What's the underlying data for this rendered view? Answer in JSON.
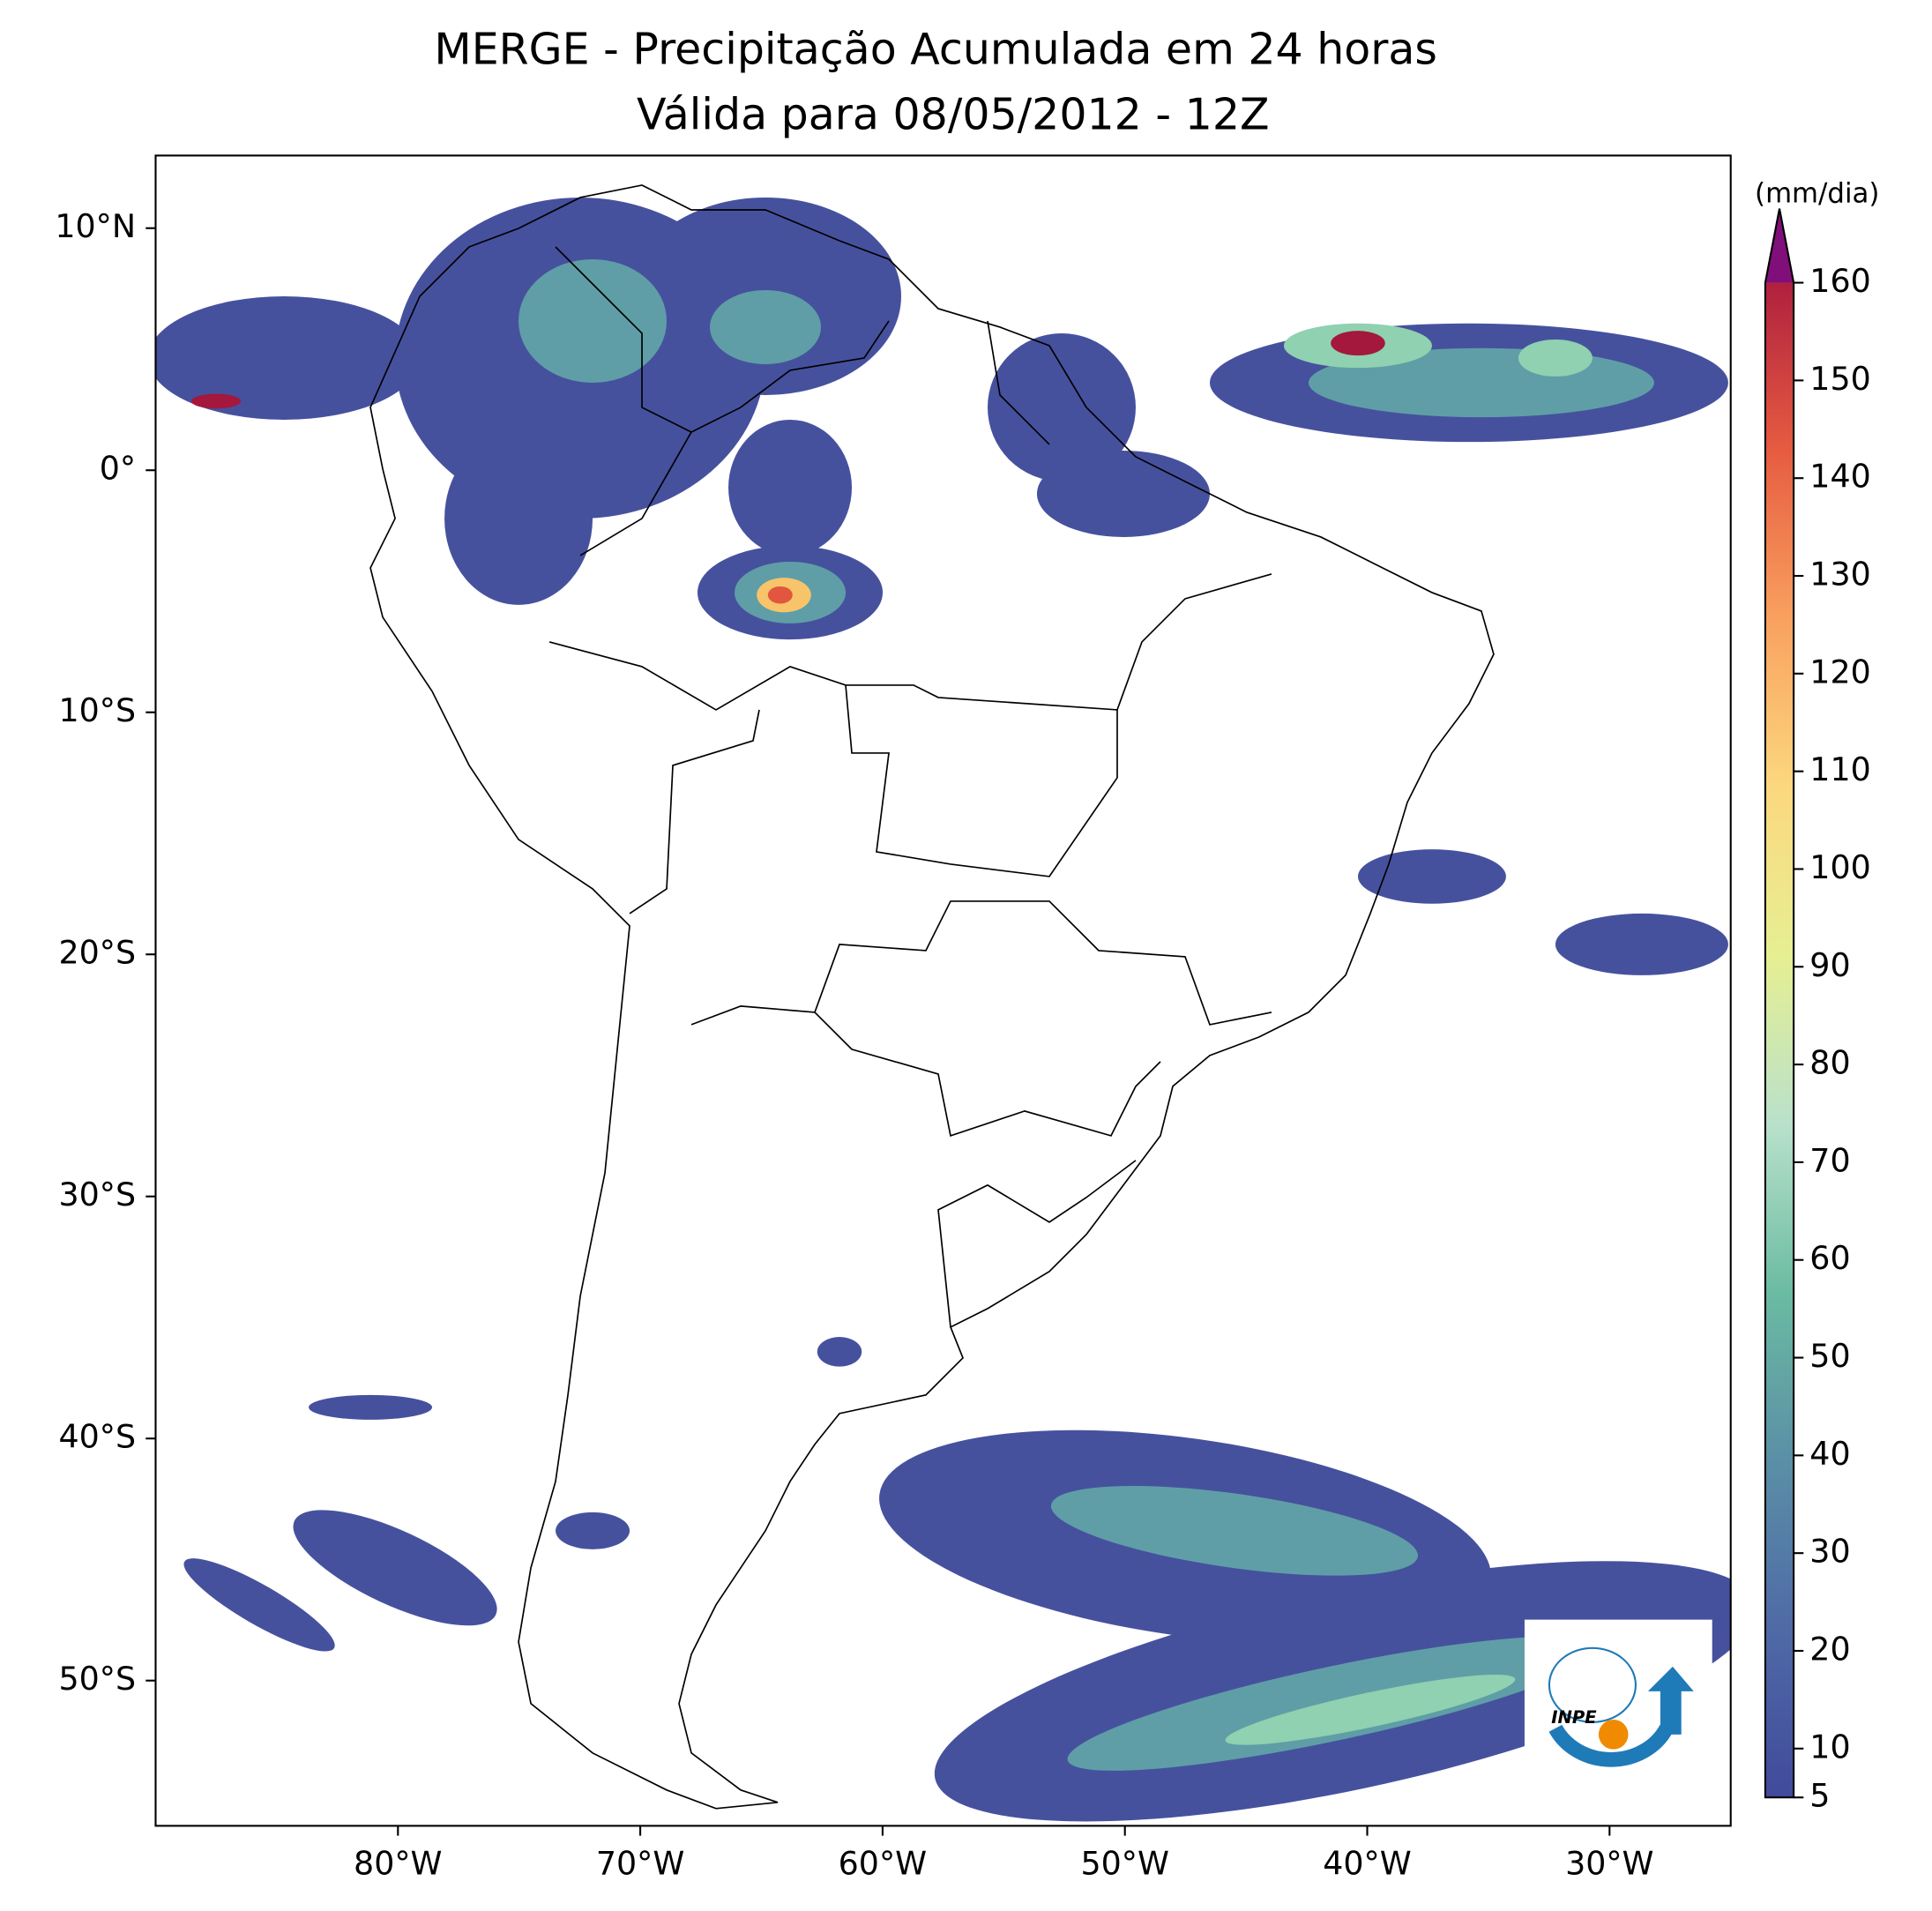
{
  "title": "MERGE - Precipitação Acumulada em 24 horas",
  "subtitle": "Válida para 08/05/2012 - 12Z",
  "map": {
    "xlim": [
      -90,
      -25
    ],
    "ylim": [
      -56,
      13
    ],
    "xticks": [
      {
        "value": -80,
        "label": "80°W"
      },
      {
        "value": -70,
        "label": "70°W"
      },
      {
        "value": -60,
        "label": "60°W"
      },
      {
        "value": -50,
        "label": "50°W"
      },
      {
        "value": -40,
        "label": "40°W"
      },
      {
        "value": -30,
        "label": "30°W"
      }
    ],
    "yticks": [
      {
        "value": 10,
        "label": "10°N"
      },
      {
        "value": 0,
        "label": "0°"
      },
      {
        "value": -10,
        "label": "10°S"
      },
      {
        "value": -20,
        "label": "20°S"
      },
      {
        "value": -30,
        "label": "30°S"
      },
      {
        "value": -40,
        "label": "40°S"
      },
      {
        "value": -50,
        "label": "50°S"
      }
    ]
  },
  "colorbar": {
    "label": "(mm/dia)",
    "lim": [
      5,
      160
    ],
    "ticks": [
      5,
      10,
      20,
      30,
      40,
      50,
      60,
      70,
      80,
      90,
      100,
      110,
      120,
      130,
      140,
      150,
      160
    ],
    "colors": [
      "#414a9b",
      "#4f6aa6",
      "#5a8fa6",
      "#6bbba2",
      "#b9e1cb",
      "#e6ef92",
      "#fcd87f",
      "#f9a15f",
      "#e65c41",
      "#b0203e"
    ],
    "extend_color": "#800f7a"
  },
  "logo": {
    "text": "INPE"
  }
}
